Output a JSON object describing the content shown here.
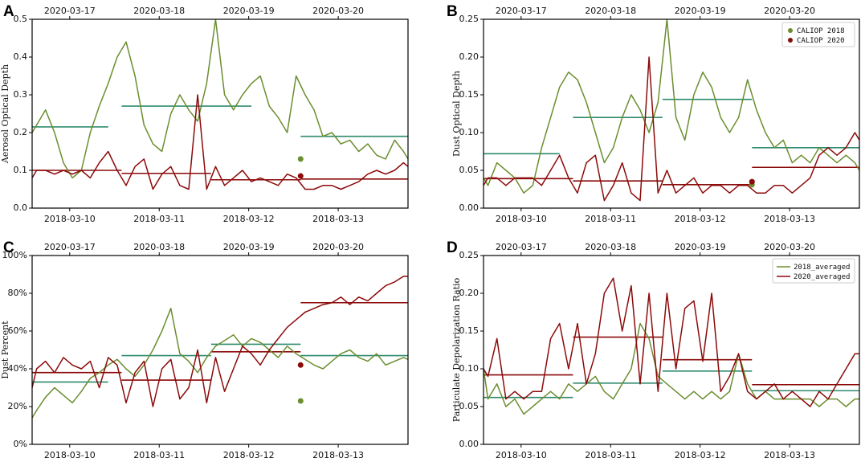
{
  "colors": {
    "y2018": "#6b8e2f",
    "y2020": "#8b0a0a",
    "avg2018": "#2e8b6e",
    "avg2020": "#8b0a0a"
  },
  "chart_data": [
    {
      "panel": "A",
      "type": "line",
      "ylabel": "Aerosol Optical Depth",
      "ylim": [
        0,
        0.5
      ],
      "yticks": [
        "0.0",
        "0.1",
        "0.2",
        "0.3",
        "0.4",
        "0.5"
      ],
      "top_axis_labels": [
        "2020-03-17",
        "2020-03-18",
        "2020-03-19",
        "2020-03-20"
      ],
      "bottom_axis_labels": [
        "2018-03-10",
        "2018-03-11",
        "2018-03-12",
        "2018-03-13"
      ],
      "xlim_days": [
        0,
        4.2
      ],
      "series": [
        {
          "name": "2018",
          "x": [
            0,
            0.05,
            0.15,
            0.25,
            0.35,
            0.45,
            0.55,
            0.65,
            0.75,
            0.85,
            0.95,
            1.05,
            1.15,
            1.25,
            1.35,
            1.45,
            1.55,
            1.65,
            1.75,
            1.85,
            1.95,
            2.05,
            2.15,
            2.25,
            2.35,
            2.45,
            2.55,
            2.65,
            2.75,
            2.85,
            2.95,
            3.05,
            3.15,
            3.25,
            3.35,
            3.45,
            3.55,
            3.65,
            3.75,
            3.85,
            3.95,
            4.05,
            4.15,
            4.2
          ],
          "values": [
            0.2,
            0.22,
            0.26,
            0.2,
            0.12,
            0.08,
            0.1,
            0.2,
            0.27,
            0.33,
            0.4,
            0.44,
            0.35,
            0.22,
            0.17,
            0.15,
            0.25,
            0.3,
            0.26,
            0.23,
            0.33,
            0.5,
            0.3,
            0.26,
            0.3,
            0.33,
            0.35,
            0.27,
            0.24,
            0.2,
            0.35,
            0.3,
            0.26,
            0.19,
            0.2,
            0.17,
            0.18,
            0.15,
            0.17,
            0.14,
            0.13,
            0.18,
            0.15,
            0.13
          ]
        },
        {
          "name": "2020",
          "x": [
            0,
            0.05,
            0.15,
            0.25,
            0.35,
            0.45,
            0.55,
            0.65,
            0.75,
            0.85,
            0.95,
            1.05,
            1.15,
            1.25,
            1.35,
            1.45,
            1.55,
            1.65,
            1.75,
            1.85,
            1.95,
            2.05,
            2.15,
            2.25,
            2.35,
            2.45,
            2.55,
            2.65,
            2.75,
            2.85,
            2.95,
            3.05,
            3.15,
            3.25,
            3.35,
            3.45,
            3.55,
            3.65,
            3.75,
            3.85,
            3.95,
            4.05,
            4.15,
            4.2
          ],
          "values": [
            0.08,
            0.1,
            0.1,
            0.09,
            0.1,
            0.09,
            0.1,
            0.08,
            0.12,
            0.15,
            0.1,
            0.06,
            0.11,
            0.13,
            0.05,
            0.09,
            0.11,
            0.06,
            0.05,
            0.3,
            0.05,
            0.11,
            0.06,
            0.08,
            0.1,
            0.07,
            0.08,
            0.07,
            0.06,
            0.09,
            0.08,
            0.05,
            0.05,
            0.06,
            0.06,
            0.05,
            0.06,
            0.07,
            0.09,
            0.1,
            0.09,
            0.1,
            0.12,
            0.11
          ]
        }
      ],
      "avg2018": [
        [
          0,
          0.85,
          0.215
        ],
        [
          1,
          2.45,
          0.27
        ],
        [
          3,
          4.2,
          0.19
        ]
      ],
      "avg2020": [
        [
          0,
          1.0,
          0.1
        ],
        [
          1,
          2.0,
          0.092
        ],
        [
          2,
          3.0,
          0.075
        ],
        [
          3,
          4.2,
          0.077
        ]
      ],
      "caliop2018": [
        3.0,
        0.13
      ],
      "caliop2020": [
        3.0,
        0.085
      ]
    },
    {
      "panel": "B",
      "type": "line",
      "ylabel": "Dust Optical Depth",
      "ylim": [
        0,
        0.25
      ],
      "yticks": [
        "0.00",
        "0.05",
        "0.10",
        "0.15",
        "0.20",
        "0.25"
      ],
      "top_axis_labels": [
        "2020-03-17",
        "2020-03-18",
        "2020-03-19",
        "2020-03-20"
      ],
      "bottom_axis_labels": [
        "2018-03-10",
        "2018-03-11",
        "2018-03-12",
        "2018-03-13"
      ],
      "legend": [
        "CALIOP 2018",
        "CALIOP 2020"
      ],
      "xlim_days": [
        0,
        4.2
      ],
      "series": [
        {
          "name": "2018",
          "x": [
            0,
            0.05,
            0.15,
            0.25,
            0.35,
            0.45,
            0.55,
            0.65,
            0.75,
            0.85,
            0.95,
            1.05,
            1.15,
            1.25,
            1.35,
            1.45,
            1.55,
            1.65,
            1.75,
            1.85,
            1.95,
            2.05,
            2.15,
            2.25,
            2.35,
            2.45,
            2.55,
            2.65,
            2.75,
            2.85,
            2.95,
            3.05,
            3.15,
            3.25,
            3.35,
            3.45,
            3.55,
            3.65,
            3.75,
            3.85,
            3.95,
            4.05,
            4.15,
            4.2
          ],
          "values": [
            0.04,
            0.03,
            0.06,
            0.05,
            0.04,
            0.02,
            0.03,
            0.08,
            0.12,
            0.16,
            0.18,
            0.17,
            0.14,
            0.1,
            0.06,
            0.08,
            0.12,
            0.15,
            0.13,
            0.1,
            0.14,
            0.25,
            0.12,
            0.09,
            0.15,
            0.18,
            0.16,
            0.12,
            0.1,
            0.12,
            0.17,
            0.13,
            0.1,
            0.08,
            0.09,
            0.06,
            0.07,
            0.06,
            0.08,
            0.07,
            0.06,
            0.07,
            0.06,
            0.05
          ]
        },
        {
          "name": "2020",
          "x": [
            0,
            0.05,
            0.15,
            0.25,
            0.35,
            0.45,
            0.55,
            0.65,
            0.75,
            0.85,
            0.95,
            1.05,
            1.15,
            1.25,
            1.35,
            1.45,
            1.55,
            1.65,
            1.75,
            1.85,
            1.95,
            2.05,
            2.15,
            2.25,
            2.35,
            2.45,
            2.55,
            2.65,
            2.75,
            2.85,
            2.95,
            3.05,
            3.15,
            3.25,
            3.35,
            3.45,
            3.55,
            3.65,
            3.75,
            3.85,
            3.95,
            4.05,
            4.15,
            4.2
          ],
          "values": [
            0.03,
            0.04,
            0.04,
            0.03,
            0.04,
            0.04,
            0.04,
            0.03,
            0.05,
            0.07,
            0.04,
            0.02,
            0.06,
            0.07,
            0.01,
            0.03,
            0.06,
            0.02,
            0.01,
            0.2,
            0.02,
            0.05,
            0.02,
            0.03,
            0.04,
            0.02,
            0.03,
            0.03,
            0.02,
            0.03,
            0.03,
            0.02,
            0.02,
            0.03,
            0.03,
            0.02,
            0.03,
            0.04,
            0.07,
            0.08,
            0.07,
            0.08,
            0.1,
            0.09
          ]
        }
      ],
      "avg2018": [
        [
          0,
          0.85,
          0.072
        ],
        [
          1,
          2.0,
          0.12
        ],
        [
          2,
          3.0,
          0.144
        ],
        [
          3,
          4.2,
          0.08
        ]
      ],
      "avg2020": [
        [
          0,
          1.0,
          0.039
        ],
        [
          1,
          2.0,
          0.036
        ],
        [
          2,
          3.0,
          0.031
        ],
        [
          3,
          4.2,
          0.054
        ]
      ],
      "caliop2018": [
        3.0,
        0.031
      ],
      "caliop2020": [
        3.0,
        0.035
      ]
    },
    {
      "panel": "C",
      "type": "line",
      "ylabel": "Dust Percent",
      "ylim": [
        0,
        100
      ],
      "yticks": [
        "0%",
        "20%",
        "40%",
        "60%",
        "80%",
        "100%"
      ],
      "top_axis_labels": [
        "2020-03-17",
        "2020-03-18",
        "2020-03-19",
        "2020-03-20"
      ],
      "bottom_axis_labels": [
        "2018-03-10",
        "2018-03-11",
        "2018-03-12",
        "2018-03-13"
      ],
      "xlim_days": [
        0,
        4.2
      ],
      "series": [
        {
          "name": "2018",
          "x": [
            0,
            0.05,
            0.15,
            0.25,
            0.35,
            0.45,
            0.55,
            0.65,
            0.75,
            0.85,
            0.95,
            1.05,
            1.15,
            1.25,
            1.35,
            1.45,
            1.55,
            1.65,
            1.75,
            1.85,
            1.95,
            2.05,
            2.15,
            2.25,
            2.35,
            2.45,
            2.55,
            2.65,
            2.75,
            2.85,
            2.95,
            3.05,
            3.15,
            3.25,
            3.35,
            3.45,
            3.55,
            3.65,
            3.75,
            3.85,
            3.95,
            4.05,
            4.15,
            4.2
          ],
          "values": [
            14,
            18,
            25,
            30,
            26,
            22,
            28,
            35,
            38,
            42,
            45,
            40,
            36,
            42,
            50,
            60,
            72,
            48,
            44,
            38,
            46,
            52,
            55,
            58,
            52,
            56,
            54,
            50,
            46,
            52,
            48,
            45,
            42,
            40,
            44,
            48,
            50,
            46,
            44,
            48,
            42,
            44,
            46,
            45
          ]
        },
        {
          "name": "2020",
          "x": [
            0,
            0.05,
            0.15,
            0.25,
            0.35,
            0.45,
            0.55,
            0.65,
            0.75,
            0.85,
            0.95,
            1.05,
            1.15,
            1.25,
            1.35,
            1.45,
            1.55,
            1.65,
            1.75,
            1.85,
            1.95,
            2.05,
            2.15,
            2.25,
            2.35,
            2.45,
            2.55,
            2.65,
            2.75,
            2.85,
            2.95,
            3.05,
            3.15,
            3.25,
            3.35,
            3.45,
            3.55,
            3.65,
            3.75,
            3.85,
            3.95,
            4.05,
            4.15,
            4.2
          ],
          "values": [
            30,
            40,
            44,
            38,
            46,
            42,
            40,
            44,
            30,
            46,
            42,
            22,
            38,
            44,
            20,
            40,
            45,
            24,
            30,
            50,
            22,
            46,
            28,
            40,
            52,
            48,
            42,
            50,
            56,
            62,
            66,
            70,
            72,
            74,
            75,
            78,
            74,
            78,
            76,
            80,
            84,
            86,
            89,
            89
          ]
        }
      ],
      "avg2018": [
        [
          0,
          0.85,
          33
        ],
        [
          1,
          2.0,
          47
        ],
        [
          2,
          3.0,
          53
        ],
        [
          3,
          4.2,
          47
        ]
      ],
      "avg2020": [
        [
          0,
          1.0,
          38
        ],
        [
          1,
          2.0,
          34
        ],
        [
          2,
          3.0,
          49
        ],
        [
          3,
          4.2,
          75
        ]
      ],
      "caliop2018": [
        3.0,
        23
      ],
      "caliop2020": [
        3.0,
        42
      ]
    },
    {
      "panel": "D",
      "type": "line",
      "ylabel": "Particulate Depolarization Ratio",
      "ylim": [
        0,
        0.25
      ],
      "yticks": [
        "0.00",
        "0.05",
        "0.10",
        "0.15",
        "0.20",
        "0.25"
      ],
      "top_axis_labels": [
        "2020-03-17",
        "2020-03-18",
        "2020-03-19",
        "2020-03-20"
      ],
      "bottom_axis_labels": [
        "2018-03-10",
        "2018-03-11",
        "2018-03-12",
        "2018-03-13"
      ],
      "legend": [
        "2018_averaged",
        "2020_averaged"
      ],
      "xlim_days": [
        0,
        4.2
      ],
      "series": [
        {
          "name": "2018_averaged",
          "x": [
            0,
            0.05,
            0.15,
            0.25,
            0.35,
            0.45,
            0.55,
            0.65,
            0.75,
            0.85,
            0.95,
            1.05,
            1.15,
            1.25,
            1.35,
            1.45,
            1.55,
            1.65,
            1.75,
            1.85,
            1.95,
            2.05,
            2.15,
            2.25,
            2.35,
            2.45,
            2.55,
            2.65,
            2.75,
            2.85,
            2.95,
            3.05,
            3.15,
            3.25,
            3.35,
            3.45,
            3.55,
            3.65,
            3.75,
            3.85,
            3.95,
            4.05,
            4.15,
            4.2
          ],
          "values": [
            0.1,
            0.06,
            0.08,
            0.05,
            0.06,
            0.04,
            0.05,
            0.06,
            0.07,
            0.06,
            0.08,
            0.07,
            0.08,
            0.09,
            0.07,
            0.06,
            0.08,
            0.1,
            0.16,
            0.14,
            0.09,
            0.08,
            0.07,
            0.06,
            0.07,
            0.06,
            0.07,
            0.06,
            0.07,
            0.12,
            0.08,
            0.06,
            0.07,
            0.06,
            0.06,
            0.06,
            0.06,
            0.06,
            0.05,
            0.06,
            0.06,
            0.05,
            0.06,
            0.06
          ]
        },
        {
          "name": "2020_averaged",
          "x": [
            0,
            0.05,
            0.15,
            0.25,
            0.35,
            0.45,
            0.55,
            0.65,
            0.75,
            0.85,
            0.95,
            1.05,
            1.15,
            1.25,
            1.35,
            1.45,
            1.55,
            1.65,
            1.75,
            1.85,
            1.95,
            2.05,
            2.15,
            2.25,
            2.35,
            2.45,
            2.55,
            2.65,
            2.75,
            2.85,
            2.95,
            3.05,
            3.15,
            3.25,
            3.35,
            3.45,
            3.55,
            3.65,
            3.75,
            3.85,
            3.95,
            4.05,
            4.15,
            4.2
          ],
          "values": [
            0.1,
            0.09,
            0.14,
            0.06,
            0.07,
            0.06,
            0.07,
            0.07,
            0.14,
            0.16,
            0.1,
            0.16,
            0.08,
            0.12,
            0.2,
            0.22,
            0.15,
            0.21,
            0.08,
            0.2,
            0.07,
            0.2,
            0.1,
            0.18,
            0.19,
            0.11,
            0.2,
            0.07,
            0.09,
            0.12,
            0.07,
            0.06,
            0.07,
            0.08,
            0.06,
            0.07,
            0.06,
            0.05,
            0.07,
            0.06,
            0.08,
            0.1,
            0.12,
            0.12
          ]
        }
      ],
      "avg2018": [
        [
          0,
          1.0,
          0.062
        ],
        [
          1,
          2.0,
          0.081
        ],
        [
          2,
          3.0,
          0.097
        ],
        [
          3,
          4.2,
          0.071
        ]
      ],
      "avg2020": [
        [
          0,
          1.0,
          0.092
        ],
        [
          1,
          2.0,
          0.142
        ],
        [
          2,
          3.0,
          0.112
        ],
        [
          3,
          4.2,
          0.079
        ]
      ]
    }
  ]
}
